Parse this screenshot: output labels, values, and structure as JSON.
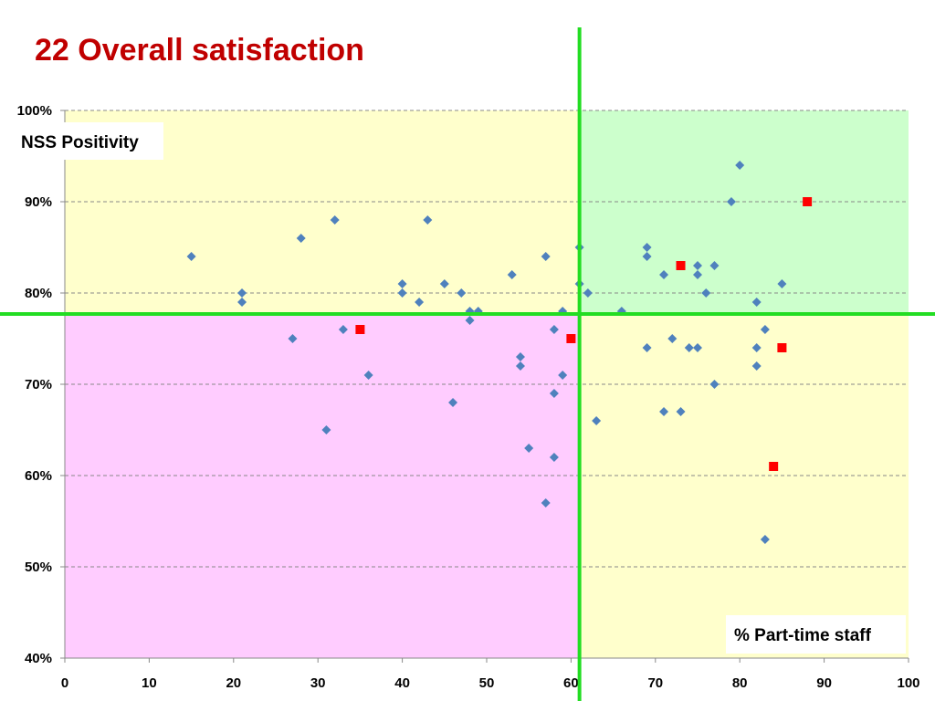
{
  "title": "22 Overall satisfaction",
  "chart_data": {
    "type": "scatter",
    "title": "22 Overall satisfaction",
    "xlabel": "% Part-time staff",
    "ylabel": "NSS Positivity",
    "xlim": [
      0,
      100
    ],
    "ylim": [
      40,
      100
    ],
    "x_ticks": [
      0,
      10,
      20,
      30,
      40,
      50,
      60,
      70,
      80,
      90,
      100
    ],
    "y_ticks": [
      40,
      50,
      60,
      70,
      80,
      90,
      100
    ],
    "x_tick_labels": [
      "0",
      "10",
      "20",
      "30",
      "40",
      "50",
      "60",
      "70",
      "80",
      "90",
      "100"
    ],
    "y_tick_labels": [
      "40%",
      "50%",
      "60%",
      "70%",
      "80%",
      "90%",
      "100%"
    ],
    "grid": "horizontal dashed",
    "reference_lines": {
      "x": 61,
      "y": 77.7,
      "color": "#22dd22"
    },
    "quadrant_colors": {
      "top_left": "#ffffcc",
      "top_right": "#ccffcc",
      "bottom_left": "#ffccff",
      "bottom_right": "#ffffcc"
    },
    "series": [
      {
        "marker": "diamond",
        "color": "#4f81bd",
        "points": [
          [
            15,
            84
          ],
          [
            21,
            80
          ],
          [
            21,
            79
          ],
          [
            27,
            75
          ],
          [
            28,
            86
          ],
          [
            31,
            65
          ],
          [
            32,
            88
          ],
          [
            33,
            76
          ],
          [
            36,
            71
          ],
          [
            40,
            81
          ],
          [
            40,
            80
          ],
          [
            42,
            79
          ],
          [
            43,
            88
          ],
          [
            45,
            81
          ],
          [
            46,
            68
          ],
          [
            47,
            80
          ],
          [
            48,
            78
          ],
          [
            48,
            77
          ],
          [
            49,
            78
          ],
          [
            53,
            82
          ],
          [
            54,
            73
          ],
          [
            54,
            72
          ],
          [
            55,
            63
          ],
          [
            57,
            84
          ],
          [
            57,
            57
          ],
          [
            58,
            76
          ],
          [
            58,
            69
          ],
          [
            58,
            62
          ],
          [
            59,
            78
          ],
          [
            59,
            71
          ],
          [
            61,
            85
          ],
          [
            61,
            81
          ],
          [
            62,
            80
          ],
          [
            63,
            66
          ],
          [
            66,
            78
          ],
          [
            69,
            85
          ],
          [
            69,
            84
          ],
          [
            69,
            74
          ],
          [
            71,
            82
          ],
          [
            71,
            67
          ],
          [
            72,
            75
          ],
          [
            73,
            67
          ],
          [
            74,
            74
          ],
          [
            75,
            83
          ],
          [
            75,
            82
          ],
          [
            75,
            74
          ],
          [
            76,
            80
          ],
          [
            77,
            83
          ],
          [
            77,
            70
          ],
          [
            79,
            90
          ],
          [
            80,
            94
          ],
          [
            82,
            79
          ],
          [
            82,
            74
          ],
          [
            82,
            72
          ],
          [
            83,
            76
          ],
          [
            83,
            53
          ],
          [
            85,
            81
          ]
        ]
      },
      {
        "marker": "square",
        "color": "#ff0000",
        "points": [
          [
            35,
            76
          ],
          [
            60,
            75
          ],
          [
            73,
            83
          ],
          [
            84,
            61
          ],
          [
            85,
            74
          ],
          [
            88,
            90
          ]
        ]
      }
    ]
  }
}
